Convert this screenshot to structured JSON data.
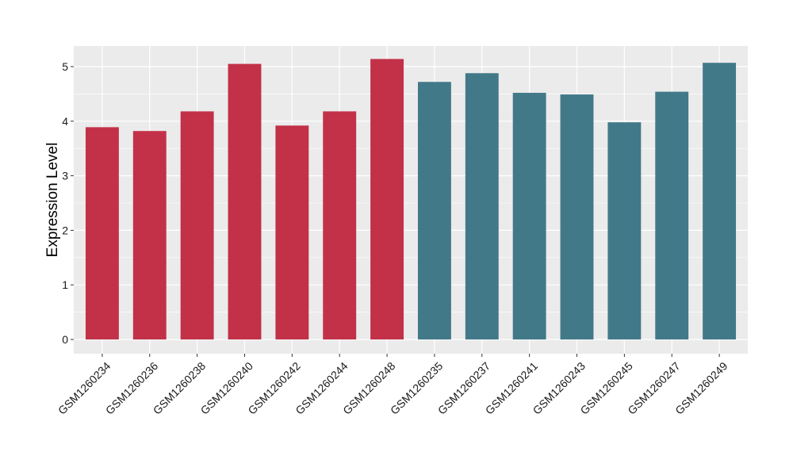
{
  "chart_data": {
    "type": "bar",
    "title": "",
    "xlabel": "",
    "ylabel": "Expression Level",
    "ylim": [
      0,
      5.25
    ],
    "yticks": [
      0,
      1,
      2,
      3,
      4,
      5
    ],
    "grid": true,
    "legend": "none",
    "categories": [
      "GSM1260234",
      "GSM1260236",
      "GSM1260238",
      "GSM1260240",
      "GSM1260242",
      "GSM1260244",
      "GSM1260248",
      "GSM1260235",
      "GSM1260237",
      "GSM1260241",
      "GSM1260243",
      "GSM1260245",
      "GSM1260247",
      "GSM1260249"
    ],
    "values": [
      3.89,
      3.82,
      4.18,
      5.05,
      3.92,
      4.18,
      5.14,
      4.72,
      4.88,
      4.52,
      4.49,
      3.98,
      4.54,
      5.07
    ],
    "groups": [
      "red",
      "red",
      "red",
      "red",
      "red",
      "red",
      "red",
      "teal",
      "teal",
      "teal",
      "teal",
      "teal",
      "teal",
      "teal"
    ],
    "colors": {
      "red": "#c23148",
      "teal": "#427989"
    },
    "panel_background": "#ebebeb",
    "gridline_color": "#ffffff"
  }
}
